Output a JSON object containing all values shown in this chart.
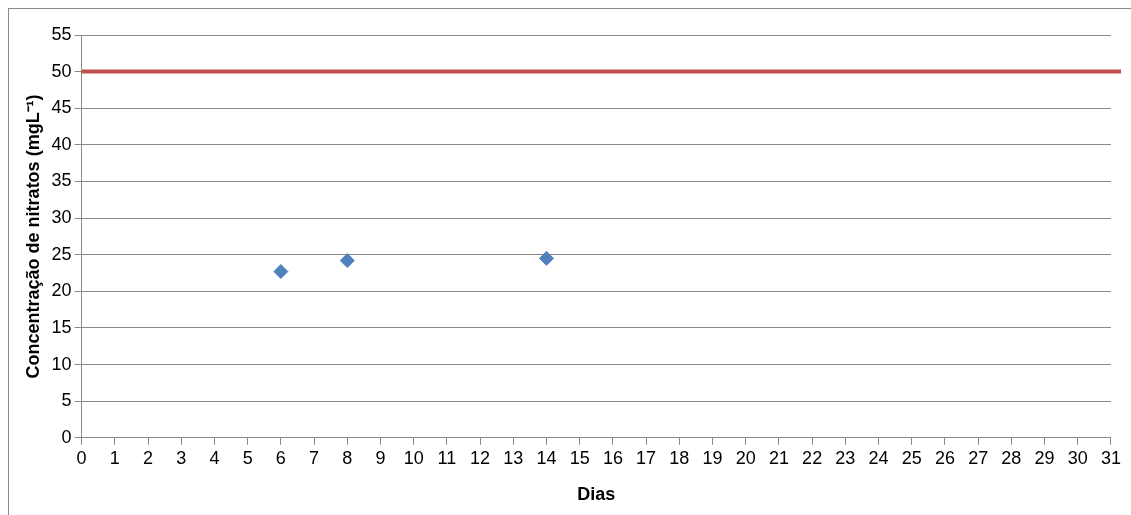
{
  "chart_data": {
    "type": "scatter",
    "xlabel": "Dias",
    "ylabel": "Concentração de nitratos (mgL⁻¹)",
    "x": [
      6,
      8,
      14
    ],
    "series": [
      {
        "color": "#4f81bd",
        "values": [
          22.7,
          24.2,
          24.5
        ]
      }
    ],
    "marker": "diamond",
    "xlim": [
      0,
      31
    ],
    "xticks": [
      0,
      1,
      2,
      3,
      4,
      5,
      6,
      7,
      8,
      9,
      10,
      11,
      12,
      13,
      14,
      15,
      16,
      17,
      18,
      19,
      20,
      21,
      22,
      23,
      24,
      25,
      26,
      27,
      28,
      29,
      30,
      31
    ],
    "ylim": [
      0,
      55
    ],
    "yticks": [
      0,
      5,
      10,
      15,
      20,
      25,
      30,
      35,
      40,
      45,
      50,
      55
    ],
    "grid": "y",
    "ref_lines": [
      {
        "axis": "y",
        "value": 50,
        "color": "#c0504d"
      }
    ]
  }
}
